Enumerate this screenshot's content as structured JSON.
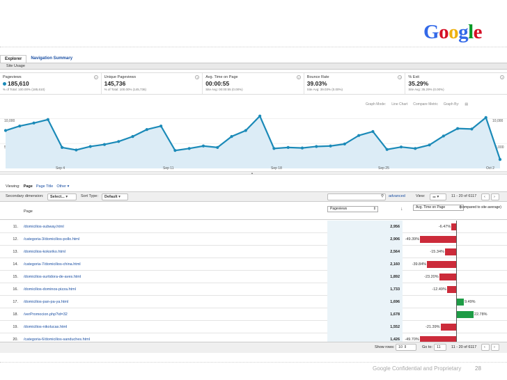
{
  "logo": {
    "letters": [
      "G",
      "o",
      "o",
      "g",
      "l",
      "e"
    ],
    "colors": [
      "#3369e8",
      "#d50f25",
      "#eeb211",
      "#3369e8",
      "#009925",
      "#d50f25"
    ]
  },
  "tabs": [
    {
      "label": "Explorer"
    },
    {
      "label": "Navigation Summary"
    }
  ],
  "subbar": {
    "label": "Site Usage"
  },
  "metrics": [
    {
      "name": "Pageviews",
      "value": "185,610",
      "sub": "% of Total: 100.00% (185,610)"
    },
    {
      "name": "Unique Pageviews",
      "value": "145,736",
      "sub": "% of Total: 100.00% (145,736)"
    },
    {
      "name": "Avg. Time on Page",
      "value": "00:00:55",
      "sub": "Site Avg: 00:00:55 (0.00%)"
    },
    {
      "name": "Bounce Rate",
      "value": "39.03%",
      "sub": "Site Avg: 39.03% (0.00%)"
    },
    {
      "name": "% Exit",
      "value": "35.29%",
      "sub": "Site Avg: 35.29% (0.00%)"
    }
  ],
  "graph_options": {
    "graph_mode": "Graph Mode:",
    "line_chart": "Line Chart",
    "compare": "Compare Metric",
    "graph_by": "Graph By:"
  },
  "chart_data": {
    "type": "area",
    "ylim": [
      0,
      12000
    ],
    "y_ticks_left": [
      "10,000",
      "5,000"
    ],
    "y_ticks_right": [
      "10,000",
      "5,000"
    ],
    "x_tick_labels": [
      "Sep 4",
      "Sep 11",
      "Sep 18",
      "Sep 25",
      "Oct 2"
    ],
    "series": [
      {
        "values": [
          7600,
          8500,
          9100,
          9800,
          4200,
          3700,
          4400,
          4800,
          5400,
          6400,
          7800,
          8500,
          3600,
          4000,
          4500,
          4200,
          6400,
          7600,
          10500,
          4000,
          4200,
          4100,
          4400,
          4500,
          4900,
          6600,
          7400,
          3800,
          4300,
          4000,
          4700,
          6500,
          8000,
          7900,
          10200,
          1800
        ]
      }
    ],
    "color": "#1b8ab8",
    "fill": "#dcecf6"
  },
  "viewing": {
    "label": "Viewing:",
    "options": [
      "Page",
      "Page Title",
      "Other"
    ],
    "selected": "Page"
  },
  "toolbar": {
    "secondary_label": "Secondary dimension:",
    "select_label": "Select...",
    "sort_label": "Sort Type:",
    "sort_value": "Default",
    "advanced": "advanced",
    "view_label": "View:",
    "range": "11 - 20 of 6117"
  },
  "header": {
    "page_col": "Page",
    "metric_select": "Pageviews",
    "compare_select": "Avg. Time on Page",
    "compare_note": "(compared to site average)"
  },
  "rows": [
    {
      "num": "11.",
      "page": "/domicilios-subway.html",
      "pageviews": "2,956",
      "delta": -6.47,
      "delta_label": "-6.47%"
    },
    {
      "num": "12.",
      "page": "/categoria-3/domicilios-pollo.html",
      "pageviews": "2,906",
      "delta": -49.39,
      "delta_label": "-49.39%"
    },
    {
      "num": "13.",
      "page": "/domicilios-kokoriko.html",
      "pageviews": "2,564",
      "delta": -15.34,
      "delta_label": "-15.34%"
    },
    {
      "num": "14.",
      "page": "/categoria-7/domicilios-china.html",
      "pageviews": "2,160",
      "delta": -39.84,
      "delta_label": "-39.84%"
    },
    {
      "num": "15.",
      "page": "/domicilios-surtidora-de-aves.html",
      "pageviews": "1,892",
      "delta": -23.2,
      "delta_label": "-23.20%"
    },
    {
      "num": "16.",
      "page": "/domicilios-dominos-pizza.html",
      "pageviews": "1,733",
      "delta": -12.49,
      "delta_label": "-12.49%"
    },
    {
      "num": "17.",
      "page": "/domicilios-pan-pa-ya.html",
      "pageviews": "1,696",
      "delta": 9.49,
      "delta_label": "9.49%"
    },
    {
      "num": "18.",
      "page": "/verPromocion.php?id=32",
      "pageviews": "1,678",
      "delta": 22.78,
      "delta_label": "22.78%"
    },
    {
      "num": "19.",
      "page": "/domicilios-nikolucas.html",
      "pageviews": "1,552",
      "delta": -21.39,
      "delta_label": "-21.39%"
    },
    {
      "num": "20.",
      "page": "/categoria-6/domicilios-sanduches.html",
      "pageviews": "1,426",
      "delta": -49.7,
      "delta_label": "-49.70%"
    }
  ],
  "footer": {
    "show_rows": "Show rows:",
    "rows_value": "10",
    "goto": "Go to:",
    "goto_value": "11",
    "range": "11 - 20 of 6117"
  },
  "slide_footer": {
    "confidential": "Google Confidential and Proprietary",
    "page_number": "28"
  }
}
